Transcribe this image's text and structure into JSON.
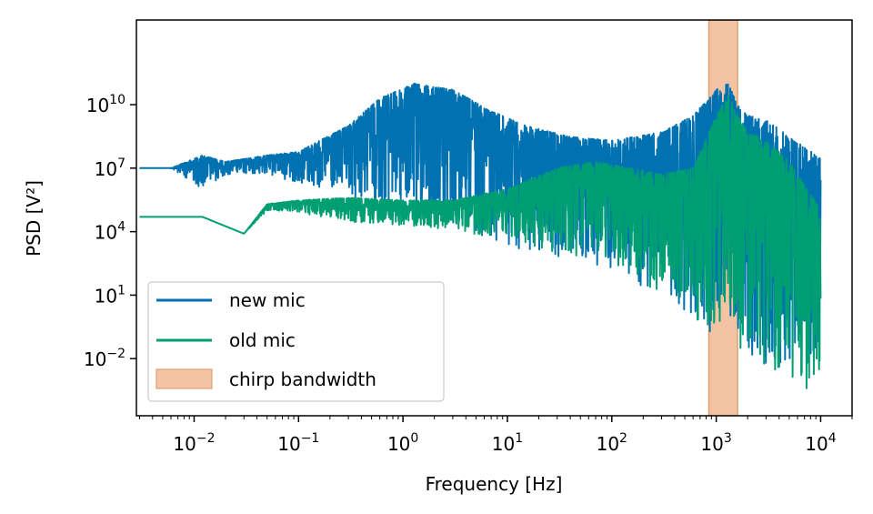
{
  "chart_data": {
    "type": "line",
    "title": "",
    "xlabel": "Frequency [Hz]",
    "ylabel": "PSD [V²]",
    "xscale": "log",
    "yscale": "log",
    "xlim": [
      0.0028,
      20000
    ],
    "ylim": [
      2e-05,
      100000000000000
    ],
    "grid": false,
    "legend_position": "lower-left",
    "x_ticks": [
      {
        "value": 0.01,
        "base": "10",
        "exp": "−2"
      },
      {
        "value": 0.1,
        "base": "10",
        "exp": "−1"
      },
      {
        "value": 1,
        "base": "10",
        "exp": "0"
      },
      {
        "value": 10,
        "base": "10",
        "exp": "1"
      },
      {
        "value": 100,
        "base": "10",
        "exp": "2"
      },
      {
        "value": 1000,
        "base": "10",
        "exp": "3"
      },
      {
        "value": 10000,
        "base": "10",
        "exp": "4"
      }
    ],
    "y_ticks": [
      {
        "value": 0.01,
        "base": "10",
        "exp": "−2"
      },
      {
        "value": 10,
        "base": "10",
        "exp": "1"
      },
      {
        "value": 10000,
        "base": "10",
        "exp": "4"
      },
      {
        "value": 10000000,
        "base": "10",
        "exp": "7"
      },
      {
        "value": 10000000000,
        "base": "10",
        "exp": "10"
      }
    ],
    "shaded_regions": [
      {
        "name": "chirp bandwidth",
        "x0": 850,
        "x1": 1600,
        "color": "#f2c4a4",
        "edge_color": "#e0a070"
      }
    ],
    "series": [
      {
        "name": "new mic",
        "color": "#0072b2",
        "envelope": {
          "x": [
            0.003,
            0.006,
            0.012,
            0.02,
            0.05,
            0.1,
            0.3,
            0.6,
            1.3,
            3,
            7,
            15,
            40,
            100,
            300,
            600,
            1000,
            1300,
            1600,
            2000,
            3000,
            5000,
            10000
          ],
          "upper": [
            10000000,
            10000000,
            40000000,
            20000000,
            40000000,
            60000000,
            1000000000,
            20000000000,
            100000000000,
            50000000000,
            5000000000,
            1000000000,
            300000000,
            200000000,
            500000000,
            3000000000,
            50000000000,
            100000000000,
            10000000000,
            3000000000,
            2000000000,
            300000000,
            30000000
          ],
          "lower": [
            10000000,
            10000000,
            1000000,
            5000000,
            5000000,
            2000000,
            300000,
            100000,
            50000,
            10000,
            5000,
            1000,
            500,
            100,
            10,
            1,
            0.1,
            1,
            0.1,
            0.01,
            0.005,
            0.002,
            0.01
          ]
        }
      },
      {
        "name": "old mic",
        "color": "#009e73",
        "envelope": {
          "x": [
            0.003,
            0.012,
            0.03,
            0.05,
            0.1,
            0.3,
            1,
            3,
            10,
            30,
            70,
            150,
            300,
            600,
            1000,
            1300,
            1600,
            2000,
            3000,
            5000,
            10000
          ],
          "upper": [
            50000,
            50000,
            8000,
            200000,
            300000,
            400000,
            300000,
            300000,
            1000000,
            10000000,
            20000000,
            10000000,
            5000000,
            10000000,
            3000000000,
            30000000000,
            3000000000,
            500000000,
            200000000,
            20000000,
            100000
          ],
          "lower": [
            50000,
            50000,
            8000,
            100000,
            80000,
            30000,
            20000,
            10000,
            5000,
            1000,
            500,
            100,
            10,
            1,
            0.1,
            1,
            0.05,
            0.01,
            0.005,
            0.001,
            0.0001
          ]
        }
      }
    ]
  }
}
